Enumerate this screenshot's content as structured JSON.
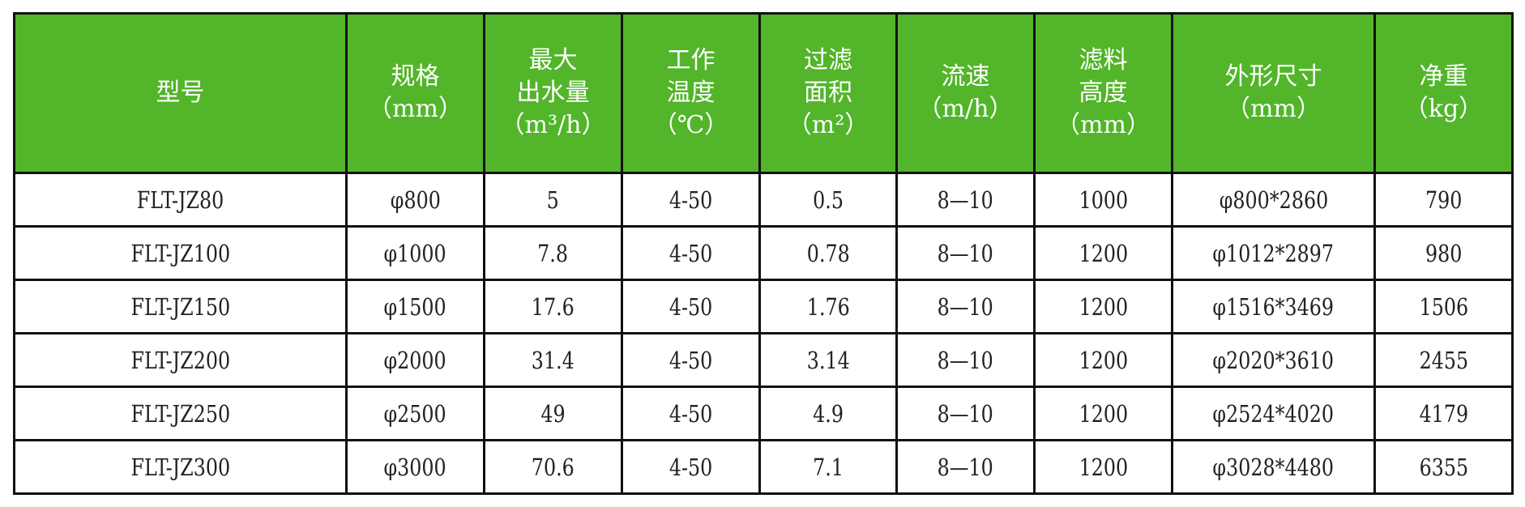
{
  "colors": {
    "header_bg": "#52b52a",
    "header_text": "#ffffff",
    "border": "#111111"
  },
  "headers": [
    {
      "lines": [
        "型号"
      ],
      "unit": ""
    },
    {
      "lines": [
        "规格"
      ],
      "unit": "（mm）"
    },
    {
      "lines": [
        "最大",
        "出水量"
      ],
      "unit": "（m³/h）"
    },
    {
      "lines": [
        "工作",
        "温度"
      ],
      "unit": "（℃）"
    },
    {
      "lines": [
        "过滤",
        "面积"
      ],
      "unit": "（m²）"
    },
    {
      "lines": [
        "流速"
      ],
      "unit": "（m/h）"
    },
    {
      "lines": [
        "滤料",
        "高度"
      ],
      "unit": "（mm）"
    },
    {
      "lines": [
        "外形尺寸"
      ],
      "unit": "（mm）"
    },
    {
      "lines": [
        "净重"
      ],
      "unit": "（kg）"
    }
  ],
  "rows": [
    [
      "FLT-JZ80",
      "φ800",
      "5",
      "4-50",
      "0.5",
      "8—10",
      "1000",
      "φ800*2860",
      "790"
    ],
    [
      "FLT-JZ100",
      "φ1000",
      "7.8",
      "4-50",
      "0.78",
      "8—10",
      "1200",
      "φ1012*2897",
      "980"
    ],
    [
      "FLT-JZ150",
      "φ1500",
      "17.6",
      "4-50",
      "1.76",
      "8—10",
      "1200",
      "φ1516*3469",
      "1506"
    ],
    [
      "FLT-JZ200",
      "φ2000",
      "31.4",
      "4-50",
      "3.14",
      "8—10",
      "1200",
      "φ2020*3610",
      "2455"
    ],
    [
      "FLT-JZ250",
      "φ2500",
      "49",
      "4-50",
      "4.9",
      "8—10",
      "1200",
      "φ2524*4020",
      "4179"
    ],
    [
      "FLT-JZ300",
      "φ3000",
      "70.6",
      "4-50",
      "7.1",
      "8—10",
      "1200",
      "φ3028*4480",
      "6355"
    ]
  ]
}
